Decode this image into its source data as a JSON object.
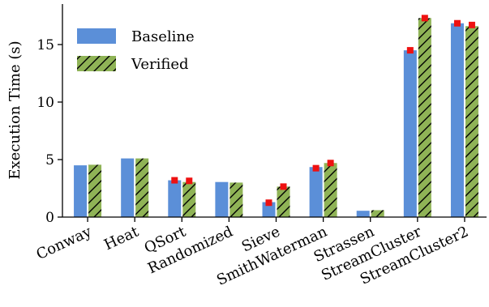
{
  "chart_data": {
    "type": "bar",
    "title": "",
    "xlabel": "",
    "ylabel": "Execution Time (s)",
    "ylim": [
      0,
      18.5
    ],
    "yticks": [
      0,
      5,
      10,
      15
    ],
    "grid": false,
    "legend_position": "top-left",
    "categories": [
      "Conway",
      "Heat",
      "QSort",
      "Randomized",
      "Sieve",
      "SmithWaterman",
      "Strassen",
      "StreamCluster",
      "StreamCluster2"
    ],
    "series": [
      {
        "name": "Baseline",
        "color": "#5b8fd8",
        "pattern": "solid",
        "values": [
          4.5,
          5.1,
          3.2,
          3.05,
          1.3,
          4.35,
          0.55,
          14.5,
          16.85
        ],
        "error_marker": [
          null,
          null,
          3.2,
          null,
          1.25,
          4.25,
          null,
          14.5,
          16.85
        ]
      },
      {
        "name": "Verified",
        "color": "#8fb356",
        "pattern": "hatched",
        "values": [
          4.55,
          5.1,
          3.05,
          3.0,
          2.65,
          4.7,
          0.6,
          17.3,
          16.6
        ],
        "error_marker": [
          null,
          null,
          3.15,
          null,
          2.65,
          4.7,
          null,
          17.3,
          16.7
        ]
      }
    ],
    "marker_color": "#ee1111"
  }
}
